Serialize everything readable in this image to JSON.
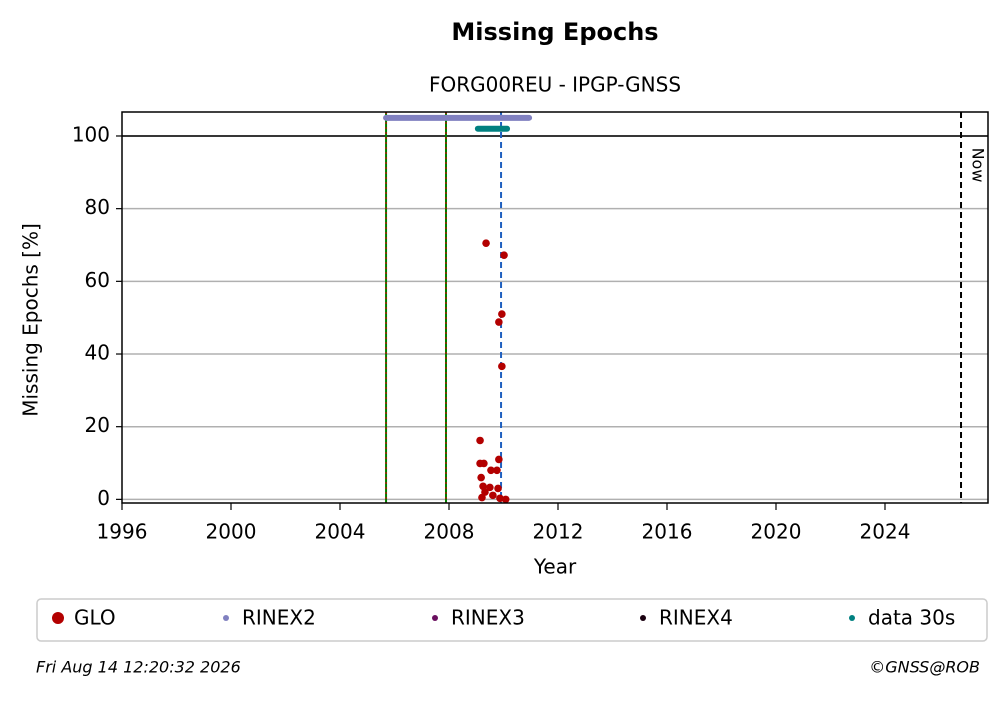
{
  "chart_data": {
    "type": "scatter",
    "title": "Missing Epochs",
    "subtitle": "FORG00REU - IPGP-GNSS",
    "x_label": "Year",
    "y_label": "Missing Epochs [%]",
    "xlim": [
      1996,
      2027.78
    ],
    "ylim": [
      -1,
      106.6
    ],
    "xticks": [
      1996,
      2000,
      2004,
      2008,
      2012,
      2016,
      2020,
      2024
    ],
    "yticks": [
      0,
      20,
      40,
      60,
      80,
      100
    ],
    "grid": true,
    "hline": 100,
    "reference_lines": [
      {
        "x": 2005.69,
        "color": "#008000",
        "dash_color": "#d00000"
      },
      {
        "x": 2007.89,
        "color": "#008000",
        "dash_color": "#d00000"
      },
      {
        "x": 2009.91,
        "color": "#1f5fbf"
      }
    ],
    "now_line": {
      "x": 2026.79,
      "label": "Now"
    },
    "series": [
      {
        "name": "GLO",
        "color": "#b30000",
        "mode": "points",
        "x": [
          2009.36,
          2010.02,
          2009.94,
          2009.83,
          2009.94,
          2009.14,
          2009.83,
          2009.14,
          2009.28,
          2009.54,
          2009.76,
          2009.18,
          2009.25,
          2009.5,
          2009.8,
          2009.32,
          2009.61,
          2009.21,
          2009.87,
          2010.08
        ],
        "values": [
          70.5,
          67.2,
          51,
          48.8,
          36.6,
          16.2,
          11,
          9.9,
          9.9,
          8,
          8,
          6,
          3.6,
          3.3,
          3,
          2,
          1.1,
          0.5,
          0.3,
          0
        ]
      },
      {
        "name": "RINEX2",
        "color": "#8080c0",
        "mode": "line",
        "x": [
          2005.69,
          2010.94
        ],
        "values": [
          105,
          105
        ]
      },
      {
        "name": "RINEX3",
        "color": "#6a0f5f",
        "mode": "points",
        "x": [],
        "values": []
      },
      {
        "name": "RINEX4",
        "color": "#1a0010",
        "mode": "points",
        "x": [],
        "values": []
      },
      {
        "name": "data 30s",
        "color": "#008080",
        "mode": "line",
        "x": [
          2009.06,
          2010.13
        ],
        "values": [
          102,
          102
        ]
      }
    ]
  },
  "footer": {
    "left": "Fri Aug 14 12:20:32 2026",
    "right": "©GNSS@ROB"
  }
}
